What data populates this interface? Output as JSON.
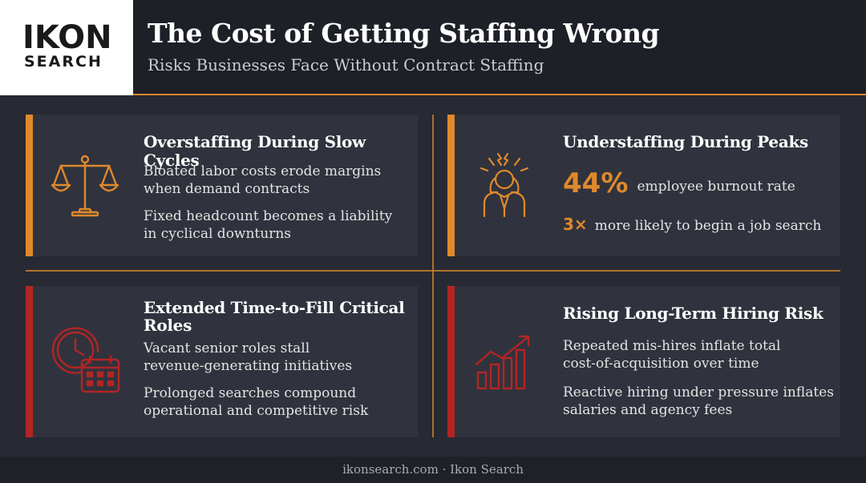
{
  "logo": {
    "main": "IKON",
    "sub": "SEARCH"
  },
  "header": {
    "title": "The Cost of Getting Staffing Wrong",
    "subtitle": "Risks Businesses Face Without Contract Staffing"
  },
  "cards": [
    {
      "title": "Overstaffing During Slow Cycles",
      "icon": "scales-icon",
      "lines": [
        "Bloated labor costs erode margins",
        "when demand contracts",
        "Fixed headcount becomes a liability",
        "in cyclical downturns"
      ]
    },
    {
      "title": "Understaffing During Peaks",
      "icon": "stressed-person-icon",
      "stat1_value": "44%",
      "stat1_label": "employee burnout rate",
      "stat2_value": "3×",
      "stat2_label": "more likely to begin a job search"
    },
    {
      "title_line1": "Extended Time-to-Fill Critical",
      "title_line2": "Roles",
      "icon": "clock-calendar-icon",
      "lines": [
        "Vacant senior roles stall",
        "revenue-generating initiatives",
        "Prolonged searches compound",
        "operational and competitive risk"
      ]
    },
    {
      "title": "Rising Long-Term Hiring Risk",
      "icon": "rising-chart-icon",
      "lines": [
        "Repeated mis-hires inflate total",
        "cost-of-acquisition over time",
        "Reactive hiring under pressure inflates",
        "salaries and agency fees"
      ]
    }
  ],
  "footer": "ikonsearch.com · Ikon Search",
  "colors": {
    "accent": "#e0892b",
    "alert": "#b22524",
    "background": "#272a33"
  }
}
